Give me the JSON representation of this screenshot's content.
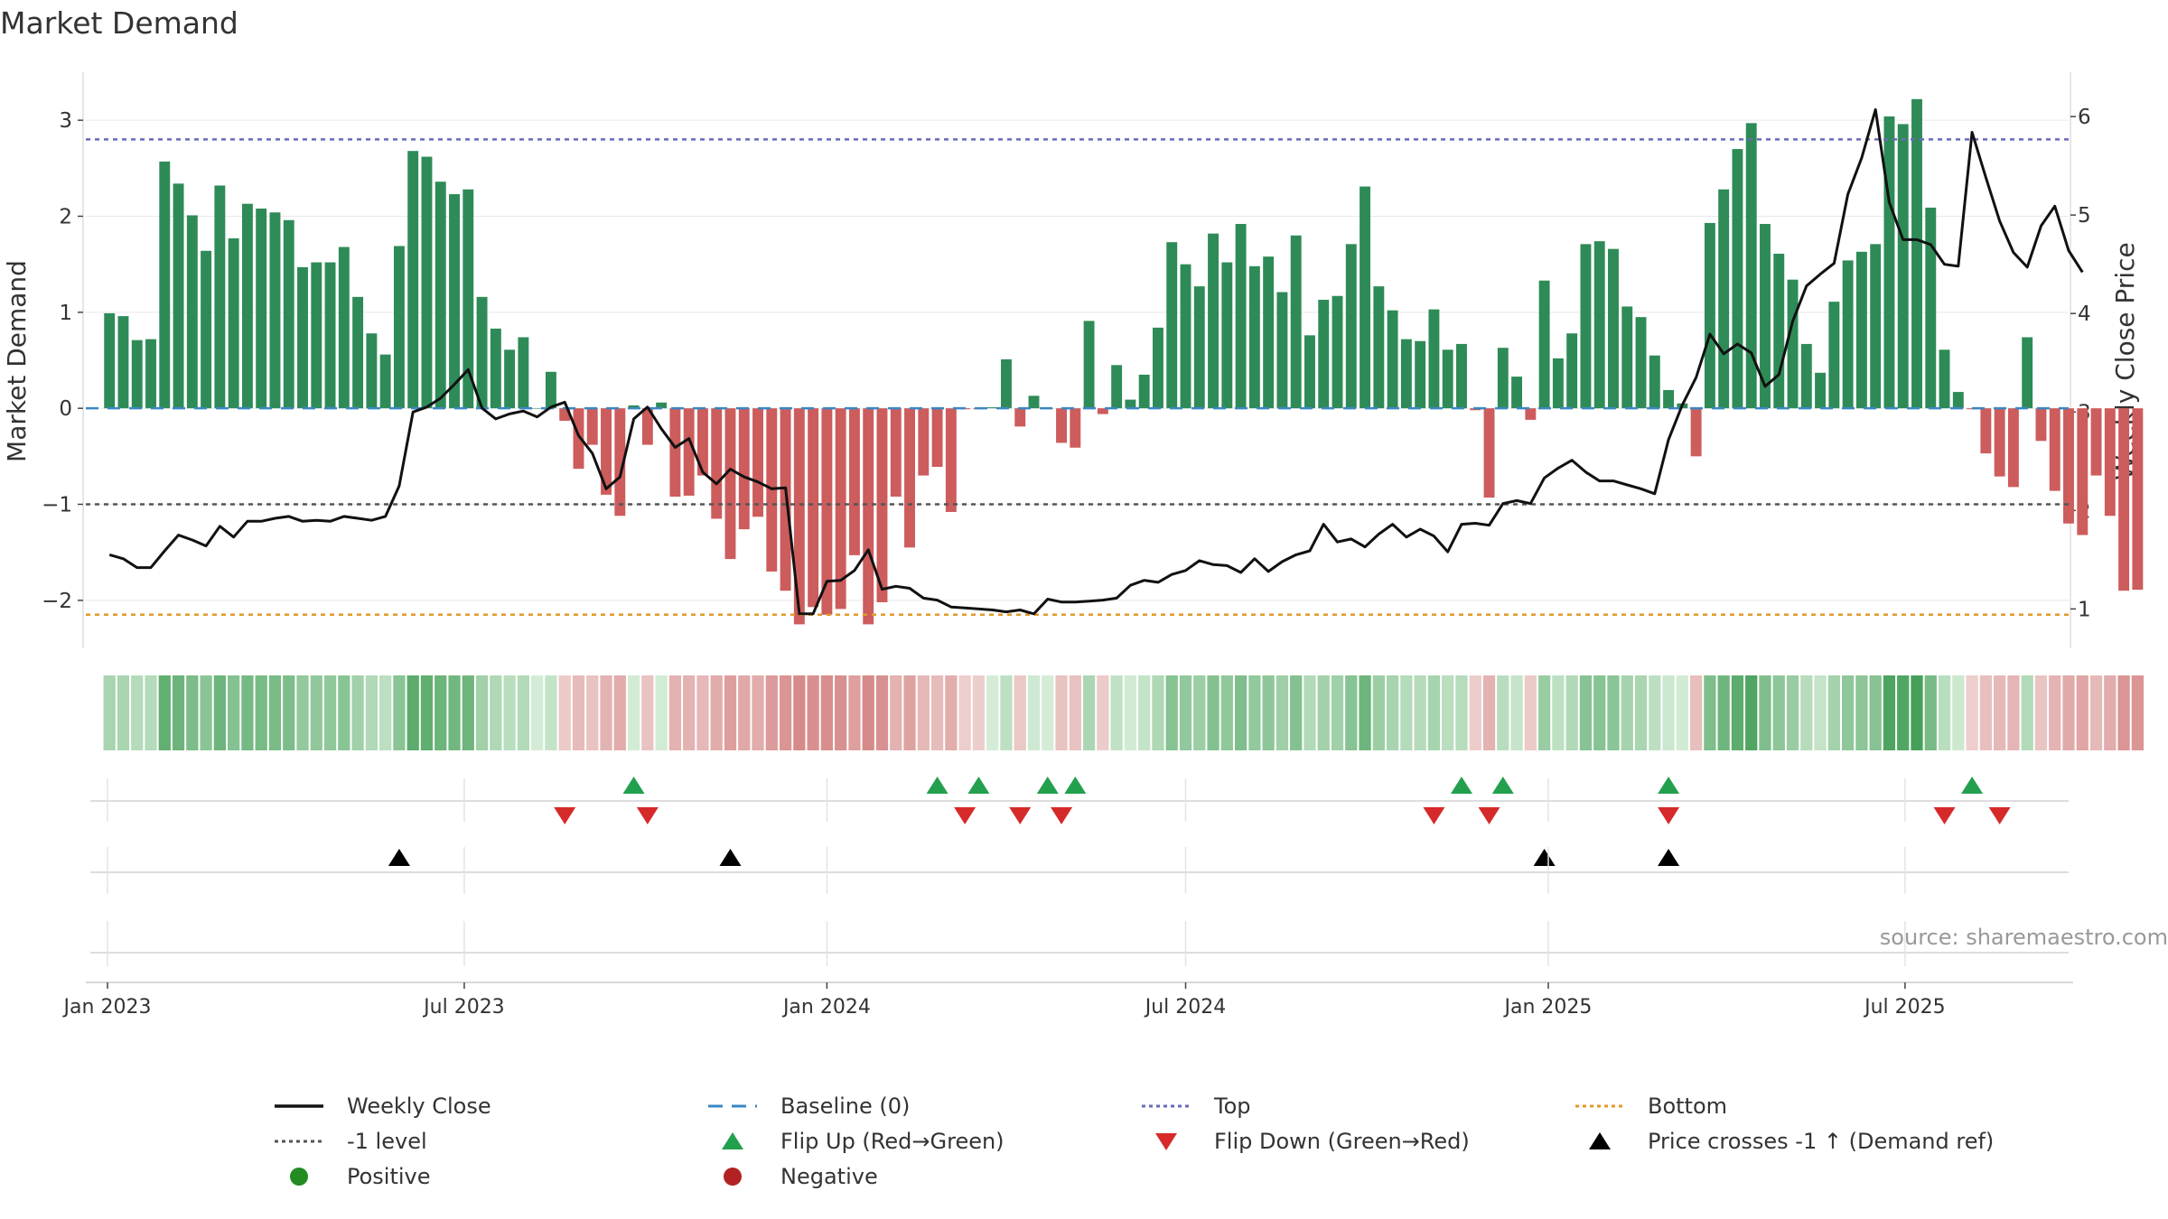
{
  "title": "Market Demand",
  "source": "source: sharemaestro.com",
  "colors": {
    "positive": "#2e8b57",
    "negative": "#cd5c5c",
    "price": "#111111",
    "baseline": "#3a87c4",
    "top": "#6a6aba",
    "bottom": "#e09a2a",
    "minus1": "#555555",
    "flip_up": "#23a04e",
    "flip_down": "#d62a2a",
    "cross": "#000000"
  },
  "chart_data": {
    "type": "bar",
    "title": "Market Demand",
    "ylabel": "Market Demand",
    "y2label": "Weekly Close Price",
    "ylim": [
      -2.5,
      3.5
    ],
    "y2lim": [
      0.6,
      6.45
    ],
    "yticks": [
      "3",
      "2",
      "1",
      "0",
      "−1",
      "−2"
    ],
    "y2ticks": [
      "6",
      "5",
      "4",
      "3",
      "2",
      "1"
    ],
    "x_start": "2023-01-02",
    "x_step_days": 7,
    "x_range": [
      "2022-12-21",
      "2025-09-22"
    ],
    "xticks": [
      {
        "date": "2023-01-01",
        "label": "Jan 2023"
      },
      {
        "date": "2023-07-01",
        "label": "Jul 2023"
      },
      {
        "date": "2024-01-01",
        "label": "Jan 2024"
      },
      {
        "date": "2024-07-01",
        "label": "Jul 2024"
      },
      {
        "date": "2025-01-01",
        "label": "Jan 2025"
      },
      {
        "date": "2025-07-01",
        "label": "Jul 2025"
      }
    ],
    "levels": {
      "baseline": 0,
      "top": 2.8,
      "bottom": -2.15,
      "minus1": -1
    },
    "series": [
      {
        "name": "Market Demand",
        "kind": "bar",
        "values": [
          0.99,
          0.96,
          0.71,
          0.72,
          2.57,
          2.34,
          2.01,
          1.64,
          2.32,
          1.77,
          2.13,
          2.08,
          2.04,
          1.96,
          1.47,
          1.52,
          1.52,
          1.68,
          1.16,
          0.78,
          0.56,
          1.69,
          2.68,
          2.62,
          2.36,
          2.23,
          2.28,
          1.16,
          0.83,
          0.61,
          0.74,
          0,
          0.38,
          -0.13,
          -0.63,
          -0.38,
          -0.9,
          -1.12,
          0.03,
          -0.38,
          0.06,
          -0.92,
          -0.91,
          -0.7,
          -1.15,
          -1.57,
          -1.26,
          -1.13,
          -1.7,
          -1.9,
          -2.25,
          -2.07,
          -2.15,
          -2.09,
          -1.53,
          -2.25,
          -2.02,
          -0.92,
          -1.45,
          -0.7,
          -0.61,
          -1.08,
          -0.01,
          -0.01,
          0.01,
          0.51,
          -0.19,
          0.13,
          0,
          -0.36,
          -0.41,
          0.91,
          -0.06,
          0.45,
          0.09,
          0.35,
          0.84,
          1.73,
          1.5,
          1.27,
          1.82,
          1.52,
          1.92,
          1.48,
          1.58,
          1.21,
          1.8,
          0.76,
          1.13,
          1.17,
          1.71,
          2.31,
          1.27,
          1.02,
          0.72,
          0.7,
          1.03,
          0.61,
          0.67,
          -0.02,
          -0.93,
          0.63,
          0.33,
          -0.12,
          1.33,
          0.52,
          0.78,
          1.71,
          1.74,
          1.66,
          1.06,
          0.95,
          0.55,
          0.19,
          0.05,
          -0.5,
          1.93,
          2.28,
          2.7,
          2.97,
          1.92,
          1.61,
          1.34,
          0.67,
          0.37,
          1.11,
          1.54,
          1.63,
          1.71,
          3.04,
          2.96,
          3.22,
          2.09,
          0.61,
          0.17,
          -0.01,
          -0.47,
          -0.71,
          -0.82,
          0.74,
          -0.34,
          -0.86,
          -1.2,
          -1.32,
          -0.7,
          -1.12,
          -1.9,
          -1.89
        ]
      },
      {
        "name": "Weekly Close",
        "kind": "line",
        "axis": "y2",
        "values": [
          1.55,
          1.51,
          1.42,
          1.42,
          1.59,
          1.75,
          1.7,
          1.64,
          1.84,
          1.73,
          1.89,
          1.89,
          1.92,
          1.94,
          1.89,
          1.9,
          1.89,
          1.94,
          1.92,
          1.9,
          1.94,
          2.25,
          3.0,
          3.05,
          3.14,
          3.28,
          3.43,
          3.04,
          2.93,
          2.98,
          3.01,
          2.95,
          3.05,
          3.1,
          2.76,
          2.58,
          2.22,
          2.34,
          2.93,
          3.05,
          2.83,
          2.64,
          2.73,
          2.39,
          2.27,
          2.42,
          2.34,
          2.29,
          2.22,
          2.23,
          0.95,
          0.95,
          1.28,
          1.29,
          1.39,
          1.6,
          1.2,
          1.23,
          1.21,
          1.11,
          1.09,
          1.02,
          1.01,
          1.0,
          0.99,
          0.97,
          0.99,
          0.95,
          1.1,
          1.07,
          1.07,
          1.08,
          1.09,
          1.11,
          1.24,
          1.29,
          1.27,
          1.35,
          1.39,
          1.49,
          1.45,
          1.44,
          1.37,
          1.51,
          1.38,
          1.48,
          1.55,
          1.59,
          1.86,
          1.68,
          1.71,
          1.63,
          1.76,
          1.86,
          1.73,
          1.81,
          1.74,
          1.58,
          1.86,
          1.87,
          1.85,
          2.07,
          2.1,
          2.07,
          2.33,
          2.43,
          2.51,
          2.39,
          2.3,
          2.3,
          2.26,
          2.22,
          2.17,
          2.72,
          3.07,
          3.35,
          3.79,
          3.59,
          3.69,
          3.6,
          3.26,
          3.38,
          3.92,
          4.28,
          4.4,
          4.51,
          5.21,
          5.58,
          6.07,
          5.13,
          4.75,
          4.75,
          4.7,
          4.5,
          4.48,
          5.84,
          5.38,
          4.94,
          4.62,
          4.47,
          4.89,
          5.09,
          4.64,
          4.42
        ]
      }
    ],
    "flip_up_weeks": [
      38,
      60,
      63,
      68,
      70,
      98,
      101,
      113,
      135
    ],
    "flip_down_weeks": [
      33,
      39,
      62,
      66,
      69,
      96,
      100,
      113,
      133,
      137
    ],
    "price_cross_weeks": [
      21,
      45,
      104,
      113
    ],
    "legend": [
      {
        "label": "Weekly Close",
        "marker": "solid-line"
      },
      {
        "label": "Baseline (0)",
        "marker": "dashed-line"
      },
      {
        "label": "Top",
        "marker": "dotted-line-top"
      },
      {
        "label": "Bottom",
        "marker": "dotted-line-bottom"
      },
      {
        "label": "-1 level",
        "marker": "dotted-line-minus1"
      },
      {
        "label": "Flip Up (Red→Green)",
        "marker": "triangle-up-green"
      },
      {
        "label": "Flip Down (Green→Red)",
        "marker": "triangle-down-red"
      },
      {
        "label": "Price crosses -1 ↑ (Demand ref)",
        "marker": "triangle-up-black"
      },
      {
        "label": "Positive",
        "marker": "dot-green"
      },
      {
        "label": "Negative",
        "marker": "dot-red"
      }
    ]
  }
}
